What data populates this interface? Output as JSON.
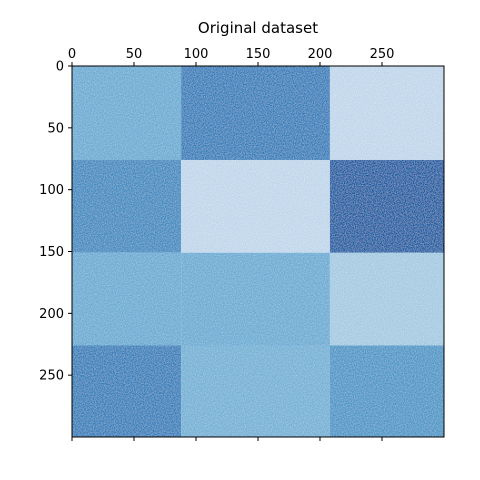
{
  "chart_data": {
    "type": "heatmap",
    "title": "Original dataset",
    "xlabel": "",
    "ylabel": "",
    "xlim": [
      0,
      300
    ],
    "ylim": [
      0,
      300
    ],
    "x_ticks": [
      0,
      50,
      100,
      150,
      200,
      250
    ],
    "y_ticks": [
      0,
      50,
      100,
      150,
      200,
      250
    ],
    "x_axis_position": "top",
    "colormap": "Blues",
    "row_bounds": [
      0,
      76,
      151,
      226,
      300
    ],
    "col_bounds": [
      0,
      88,
      208,
      300
    ],
    "block_colors": [
      [
        "#6aaed6",
        "#2e7ebc",
        "#c6dbef"
      ],
      [
        "#3b8bc2",
        "#c6dbef",
        "#0f5aa3"
      ],
      [
        "#6aaed6",
        "#6aaed6",
        "#a9cfe5"
      ],
      [
        "#2f7fbc",
        "#75b4d8",
        "#4a98c9"
      ]
    ],
    "noise": "speckled texture within each block"
  }
}
